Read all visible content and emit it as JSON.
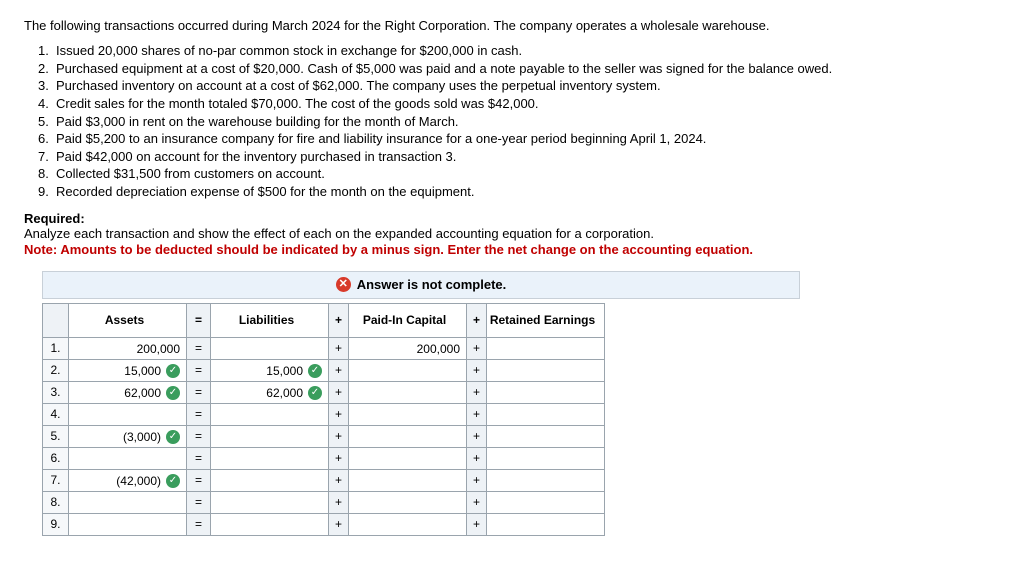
{
  "intro": "The following transactions occurred during March 2024 for the Right Corporation. The company operates a wholesale warehouse.",
  "transactions": [
    "Issued 20,000 shares of no-par common stock in exchange for $200,000 in cash.",
    "Purchased equipment at a cost of $20,000. Cash of $5,000 was paid and a note payable to the seller was signed for the balance owed.",
    "Purchased inventory on account at a cost of $62,000. The company uses the perpetual inventory system.",
    "Credit sales for the month totaled $70,000. The cost of the goods sold was $42,000.",
    "Paid $3,000 in rent on the warehouse building for the month of March.",
    "Paid $5,200 to an insurance company for fire and liability insurance for a one-year period beginning April 1, 2024.",
    "Paid $42,000 on account for the inventory purchased in transaction 3.",
    "Collected $31,500 from customers on account.",
    "Recorded depreciation expense of $500 for the month on the equipment."
  ],
  "required_heading": "Required:",
  "required_text": "Analyze each transaction and show the effect of each on the expanded accounting equation for a corporation.",
  "note_text": "Note: Amounts to be deducted should be indicated by a minus sign. Enter the net change on the accounting equation.",
  "banner_text": "Answer is not complete.",
  "headers": {
    "assets": "Assets",
    "eq": "=",
    "liab": "Liabilities",
    "plus": "+",
    "pic": "Paid-In Capital",
    "re": "Retained Earnings"
  },
  "rows": [
    {
      "n": "1.",
      "assets": "200,000",
      "assets_chk": false,
      "liab": "",
      "liab_chk": false,
      "pic": "200,000",
      "re": ""
    },
    {
      "n": "2.",
      "assets": "15,000",
      "assets_chk": true,
      "liab": "15,000",
      "liab_chk": true,
      "pic": "",
      "re": ""
    },
    {
      "n": "3.",
      "assets": "62,000",
      "assets_chk": true,
      "liab": "62,000",
      "liab_chk": true,
      "pic": "",
      "re": ""
    },
    {
      "n": "4.",
      "assets": "",
      "assets_chk": false,
      "liab": "",
      "liab_chk": false,
      "pic": "",
      "re": ""
    },
    {
      "n": "5.",
      "assets": "(3,000)",
      "assets_chk": true,
      "liab": "",
      "liab_chk": false,
      "pic": "",
      "re": ""
    },
    {
      "n": "6.",
      "assets": "",
      "assets_chk": false,
      "liab": "",
      "liab_chk": false,
      "pic": "",
      "re": ""
    },
    {
      "n": "7.",
      "assets": "(42,000)",
      "assets_chk": true,
      "liab": "",
      "liab_chk": false,
      "pic": "",
      "re": ""
    },
    {
      "n": "8.",
      "assets": "",
      "assets_chk": false,
      "liab": "",
      "liab_chk": false,
      "pic": "",
      "re": ""
    },
    {
      "n": "9.",
      "assets": "",
      "assets_chk": false,
      "liab": "",
      "liab_chk": false,
      "pic": "",
      "re": ""
    }
  ],
  "colors": {
    "note": "#c00000",
    "banner_bg": "#eaf2fa",
    "x_bg": "#d83a2a",
    "chk_bg": "#3a9d5d",
    "border": "#9aa4ad"
  }
}
